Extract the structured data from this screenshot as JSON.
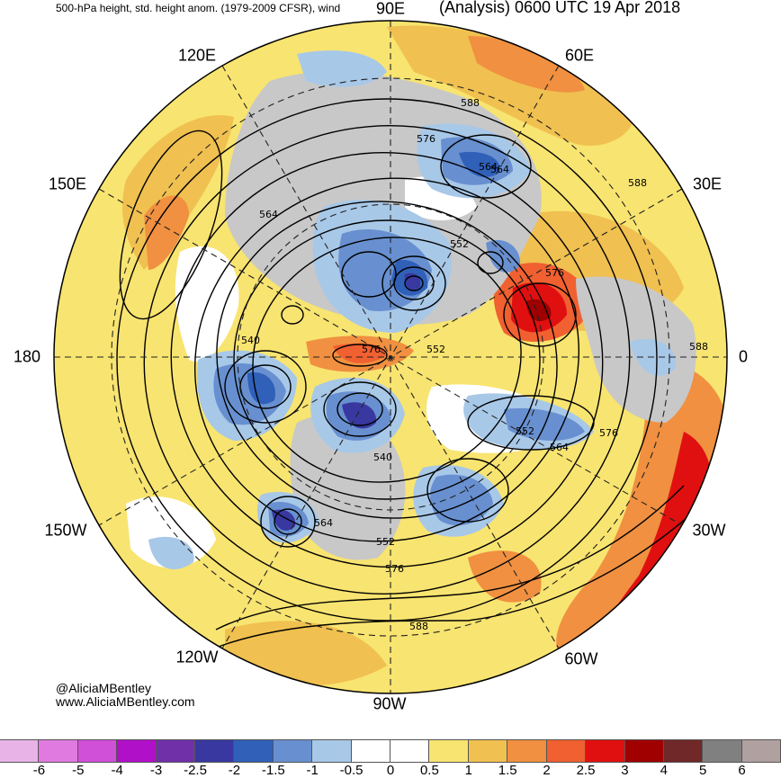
{
  "header": {
    "left_title": "500-hPa height, std. height anom. (1979-2009 CFSR), wind",
    "right_title": "(Analysis) 0600 UTC 19 Apr 2018"
  },
  "longitude_labels": {
    "north": "90E",
    "ne": "60E",
    "ene": "30E",
    "east": "0",
    "ese": "30W",
    "se": "60W",
    "south": "90W",
    "sw": "120W",
    "wsw": "150W",
    "west": "180",
    "wnw": "150E",
    "nw": "120E"
  },
  "contour_labels": [
    "588",
    "576",
    "564",
    "552",
    "540",
    "564",
    "552",
    "540",
    "576",
    "552",
    "564",
    "576",
    "564",
    "552",
    "576",
    "588",
    "564",
    "588",
    "576",
    "588"
  ],
  "credits": {
    "twitter": "@AliciaMBentley",
    "website": "www.AliciaMBentley.com"
  },
  "colorbar": {
    "colors": [
      "#e8b4e8",
      "#e07ae0",
      "#d050d8",
      "#b010c8",
      "#7030a8",
      "#3838a0",
      "#3060b8",
      "#6890d0",
      "#a8c8e8",
      "#ffffff",
      "#ffffff",
      "#f8e470",
      "#f0c050",
      "#f09040",
      "#f06030",
      "#e01010",
      "#a00000",
      "#702828",
      "#808080",
      "#b0a0a0"
    ],
    "ticks": [
      "-6",
      "-5",
      "-4",
      "-3",
      "-2.5",
      "-2",
      "-1.5",
      "-1",
      "-0.5",
      "0",
      "0.5",
      "1",
      "1.5",
      "2",
      "2.5",
      "3",
      "4",
      "5",
      "6"
    ]
  },
  "colors": {
    "gray_fill": "#c8c8c8",
    "positive_weak": "#f8e470",
    "positive_mod": "#f0c050",
    "positive_strong": "#f09040",
    "negative_weak": "#a8c8e8",
    "negative_mod": "#6890d0",
    "negative_strong": "#3060b8"
  }
}
